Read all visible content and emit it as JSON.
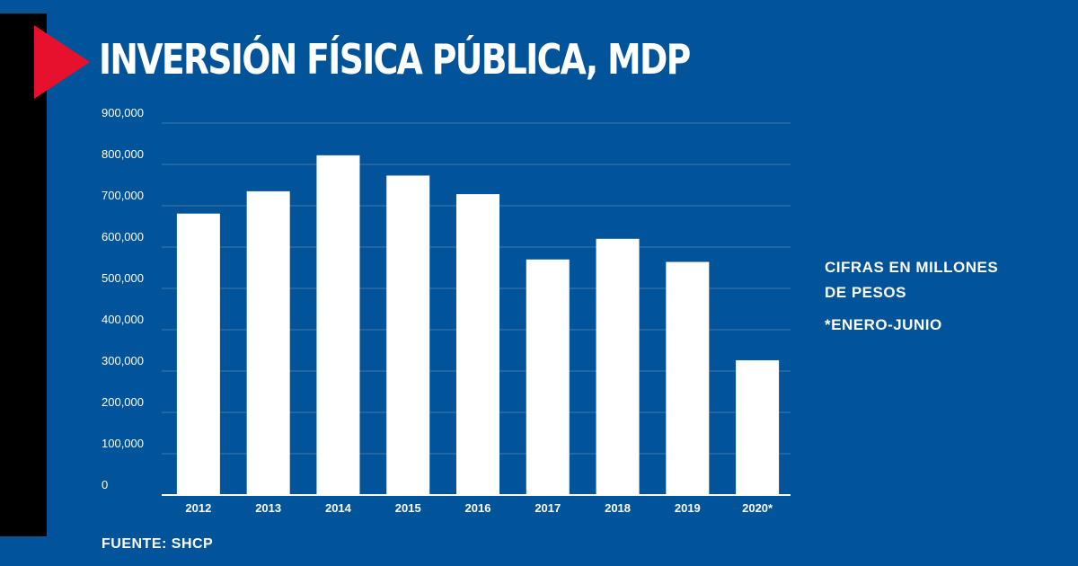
{
  "colors": {
    "background": "#01539a",
    "bar": "#ffffff",
    "accent": "#e8112d",
    "gridline": "#3d78b0",
    "side_bar": "#000000"
  },
  "icons": {
    "title_marker": "red-triangle-icon"
  },
  "note": {
    "line1": "CIFRAS EN MILLONES",
    "line2": "DE PESOS",
    "asterisk": "*ENERO-JUNIO"
  },
  "source": "FUENTE: SHCP",
  "chart_data": {
    "type": "bar",
    "title": "INVERSIÓN FÍSICA PÚBLICA, MDP",
    "categories": [
      "2012",
      "2013",
      "2014",
      "2015",
      "2016",
      "2017",
      "2018",
      "2019",
      "2020*"
    ],
    "values": [
      681000,
      735000,
      822000,
      773000,
      728000,
      570000,
      620000,
      564000,
      326000
    ],
    "ylim": [
      0,
      900000
    ],
    "yticks": [
      0,
      100000,
      200000,
      300000,
      400000,
      500000,
      600000,
      700000,
      800000,
      900000
    ],
    "ytick_labels": [
      "0",
      "100,000",
      "200,000",
      "300,000",
      "400,000",
      "500,000",
      "600,000",
      "700,000",
      "800,000",
      "900,000"
    ],
    "xlabel": "",
    "ylabel": "",
    "grid": true,
    "legend": "none"
  }
}
